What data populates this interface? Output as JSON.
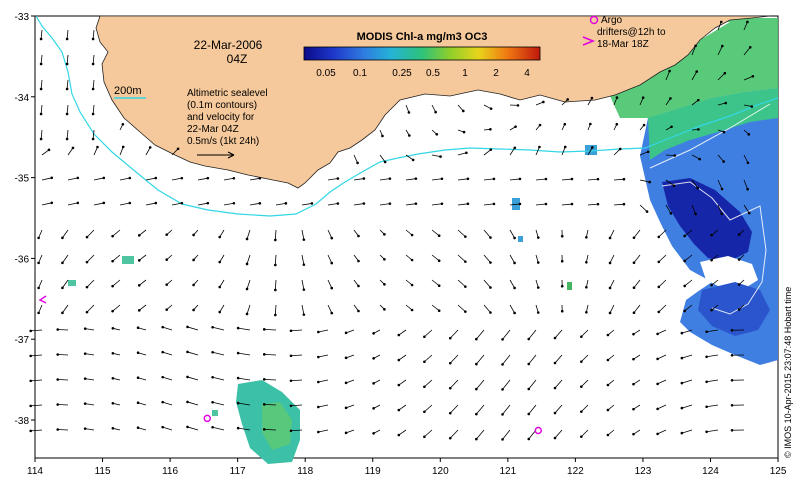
{
  "map": {
    "title_date": "22-Mar-2006",
    "title_time": "04Z",
    "colorbar_title": "MODIS Chl-a mg/m3 OC3",
    "colorbar_ticks": [
      "0.05",
      "0.1",
      "0.25",
      "0.5",
      "1",
      "2",
      "4"
    ],
    "contour_label": "200m",
    "sealevel_note": [
      "Altimetric sealevel",
      "(0.1m contours)",
      "and velocity for",
      "22-Mar 04Z",
      "0.5m/s (1kt 24h)"
    ],
    "argo_legend": [
      "Argo",
      "drifters@12h to",
      "18-Mar 18Z"
    ],
    "credit": "© IMOS 10-Apr-2015 23:07:48 Hobart time",
    "x_ticks": [
      "114",
      "115",
      "116",
      "117",
      "118",
      "119",
      "120",
      "121",
      "122",
      "123",
      "124",
      "125"
    ],
    "y_ticks": [
      "-33",
      "-34",
      "-35",
      "-36",
      "-37",
      "-38"
    ],
    "argo_floats": [
      {
        "lon": 116.55,
        "lat": -37.98
      },
      {
        "lon": 121.45,
        "lat": -38.13
      }
    ],
    "colors": {
      "land": "#f5c99b",
      "isobath": "#33d6e6",
      "argo": "#e000e0",
      "arrows": "#000000"
    }
  }
}
